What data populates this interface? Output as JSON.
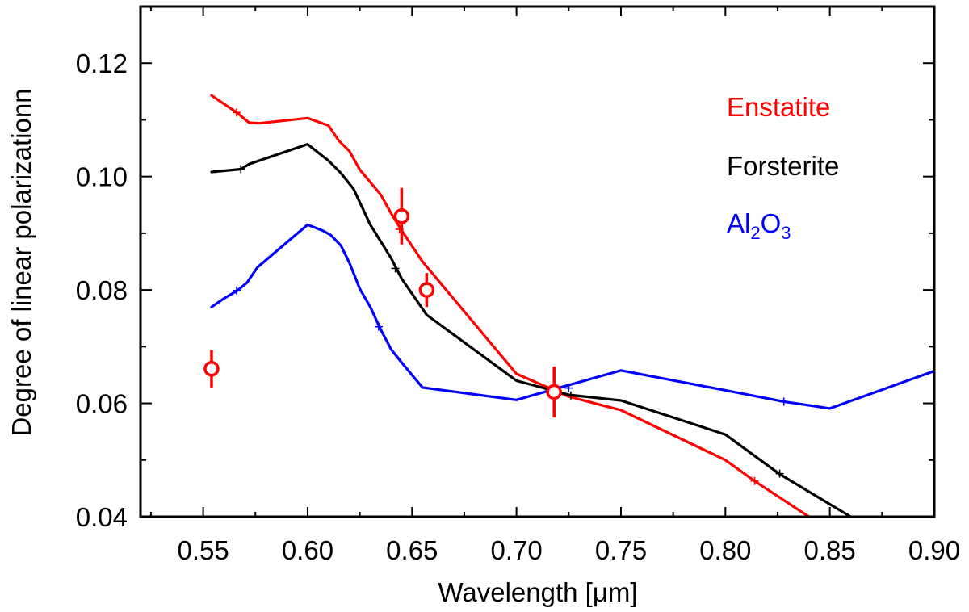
{
  "chart_data": {
    "type": "line",
    "title": "",
    "xlabel": "Wavelength [μm]",
    "ylabel": "Degree of linear polarizationn",
    "xlim": [
      0.52,
      0.9
    ],
    "ylim": [
      0.04,
      0.13
    ],
    "x_ticks": [
      0.55,
      0.6,
      0.65,
      0.7,
      0.75,
      0.8,
      0.85,
      0.9
    ],
    "x_tick_labels": [
      "0.55",
      "0.60",
      "0.65",
      "0.70",
      "0.75",
      "0.80",
      "0.85",
      "0.90"
    ],
    "y_ticks": [
      0.04,
      0.06,
      0.08,
      0.1,
      0.12
    ],
    "y_tick_labels": [
      "0.04",
      "0.06",
      "0.08",
      "0.10",
      "0.12"
    ],
    "grid": false,
    "legend_position": "top-right",
    "series": [
      {
        "name": "Enstatite",
        "color": "#ff0000",
        "x": [
          0.554,
          0.566,
          0.572,
          0.577,
          0.6,
          0.61,
          0.615,
          0.62,
          0.625,
          0.635,
          0.64,
          0.645,
          0.655,
          0.7,
          0.725,
          0.75,
          0.8,
          0.814,
          0.84
        ],
        "y": [
          0.1143,
          0.1113,
          0.1095,
          0.1094,
          0.1103,
          0.109,
          0.1063,
          0.1045,
          0.1012,
          0.0968,
          0.0935,
          0.0905,
          0.085,
          0.0652,
          0.0612,
          0.0588,
          0.05,
          0.0463,
          0.04
        ],
        "crosses": [
          [
            0.566,
            0.1113
          ],
          [
            0.644,
            0.0907
          ],
          [
            0.814,
            0.0463
          ]
        ]
      },
      {
        "name": "Forsterite",
        "color": "#000000",
        "x": [
          0.554,
          0.568,
          0.572,
          0.6,
          0.61,
          0.616,
          0.622,
          0.63,
          0.64,
          0.645,
          0.657,
          0.7,
          0.725,
          0.75,
          0.8,
          0.826,
          0.86
        ],
        "y": [
          0.1008,
          0.1013,
          0.1022,
          0.1057,
          0.1028,
          0.1006,
          0.0978,
          0.0915,
          0.0856,
          0.082,
          0.0756,
          0.064,
          0.0615,
          0.0605,
          0.0545,
          0.0475,
          0.04
        ],
        "crosses": [
          [
            0.568,
            0.1013
          ],
          [
            0.642,
            0.0838
          ],
          [
            0.726,
            0.0614
          ],
          [
            0.826,
            0.0476
          ]
        ]
      },
      {
        "name": "Al2O3",
        "color": "#0000ff",
        "x": [
          0.554,
          0.56,
          0.566,
          0.571,
          0.576,
          0.6,
          0.607,
          0.611,
          0.616,
          0.62,
          0.625,
          0.63,
          0.635,
          0.64,
          0.645,
          0.655,
          0.7,
          0.72,
          0.75,
          0.8,
          0.828,
          0.85,
          0.9
        ],
        "y": [
          0.077,
          0.0785,
          0.0798,
          0.0813,
          0.084,
          0.0915,
          0.0905,
          0.0897,
          0.0878,
          0.0848,
          0.0802,
          0.077,
          0.073,
          0.0695,
          0.0672,
          0.0628,
          0.0606,
          0.0627,
          0.0658,
          0.0623,
          0.0603,
          0.0591,
          0.0657
        ],
        "crosses": [
          [
            0.566,
            0.0799
          ],
          [
            0.634,
            0.0735
          ],
          [
            0.725,
            0.0627
          ],
          [
            0.828,
            0.0603
          ]
        ]
      }
    ],
    "observations": {
      "color": "#ff0000",
      "points": [
        {
          "x": 0.554,
          "y": 0.0661,
          "err": 0.0033
        },
        {
          "x": 0.645,
          "y": 0.093,
          "err": 0.005
        },
        {
          "x": 0.657,
          "y": 0.08,
          "err": 0.003
        },
        {
          "x": 0.718,
          "y": 0.062,
          "err": 0.0045
        }
      ]
    }
  },
  "legend": {
    "entries": [
      {
        "label": "Enstatite",
        "color": "#ff0000"
      },
      {
        "label": "Forsterite",
        "color": "#000000"
      },
      {
        "label_main_1": "Al",
        "sub_1": "2",
        "label_main_2": "O",
        "sub_2": "3",
        "color": "#0000ff"
      }
    ]
  }
}
